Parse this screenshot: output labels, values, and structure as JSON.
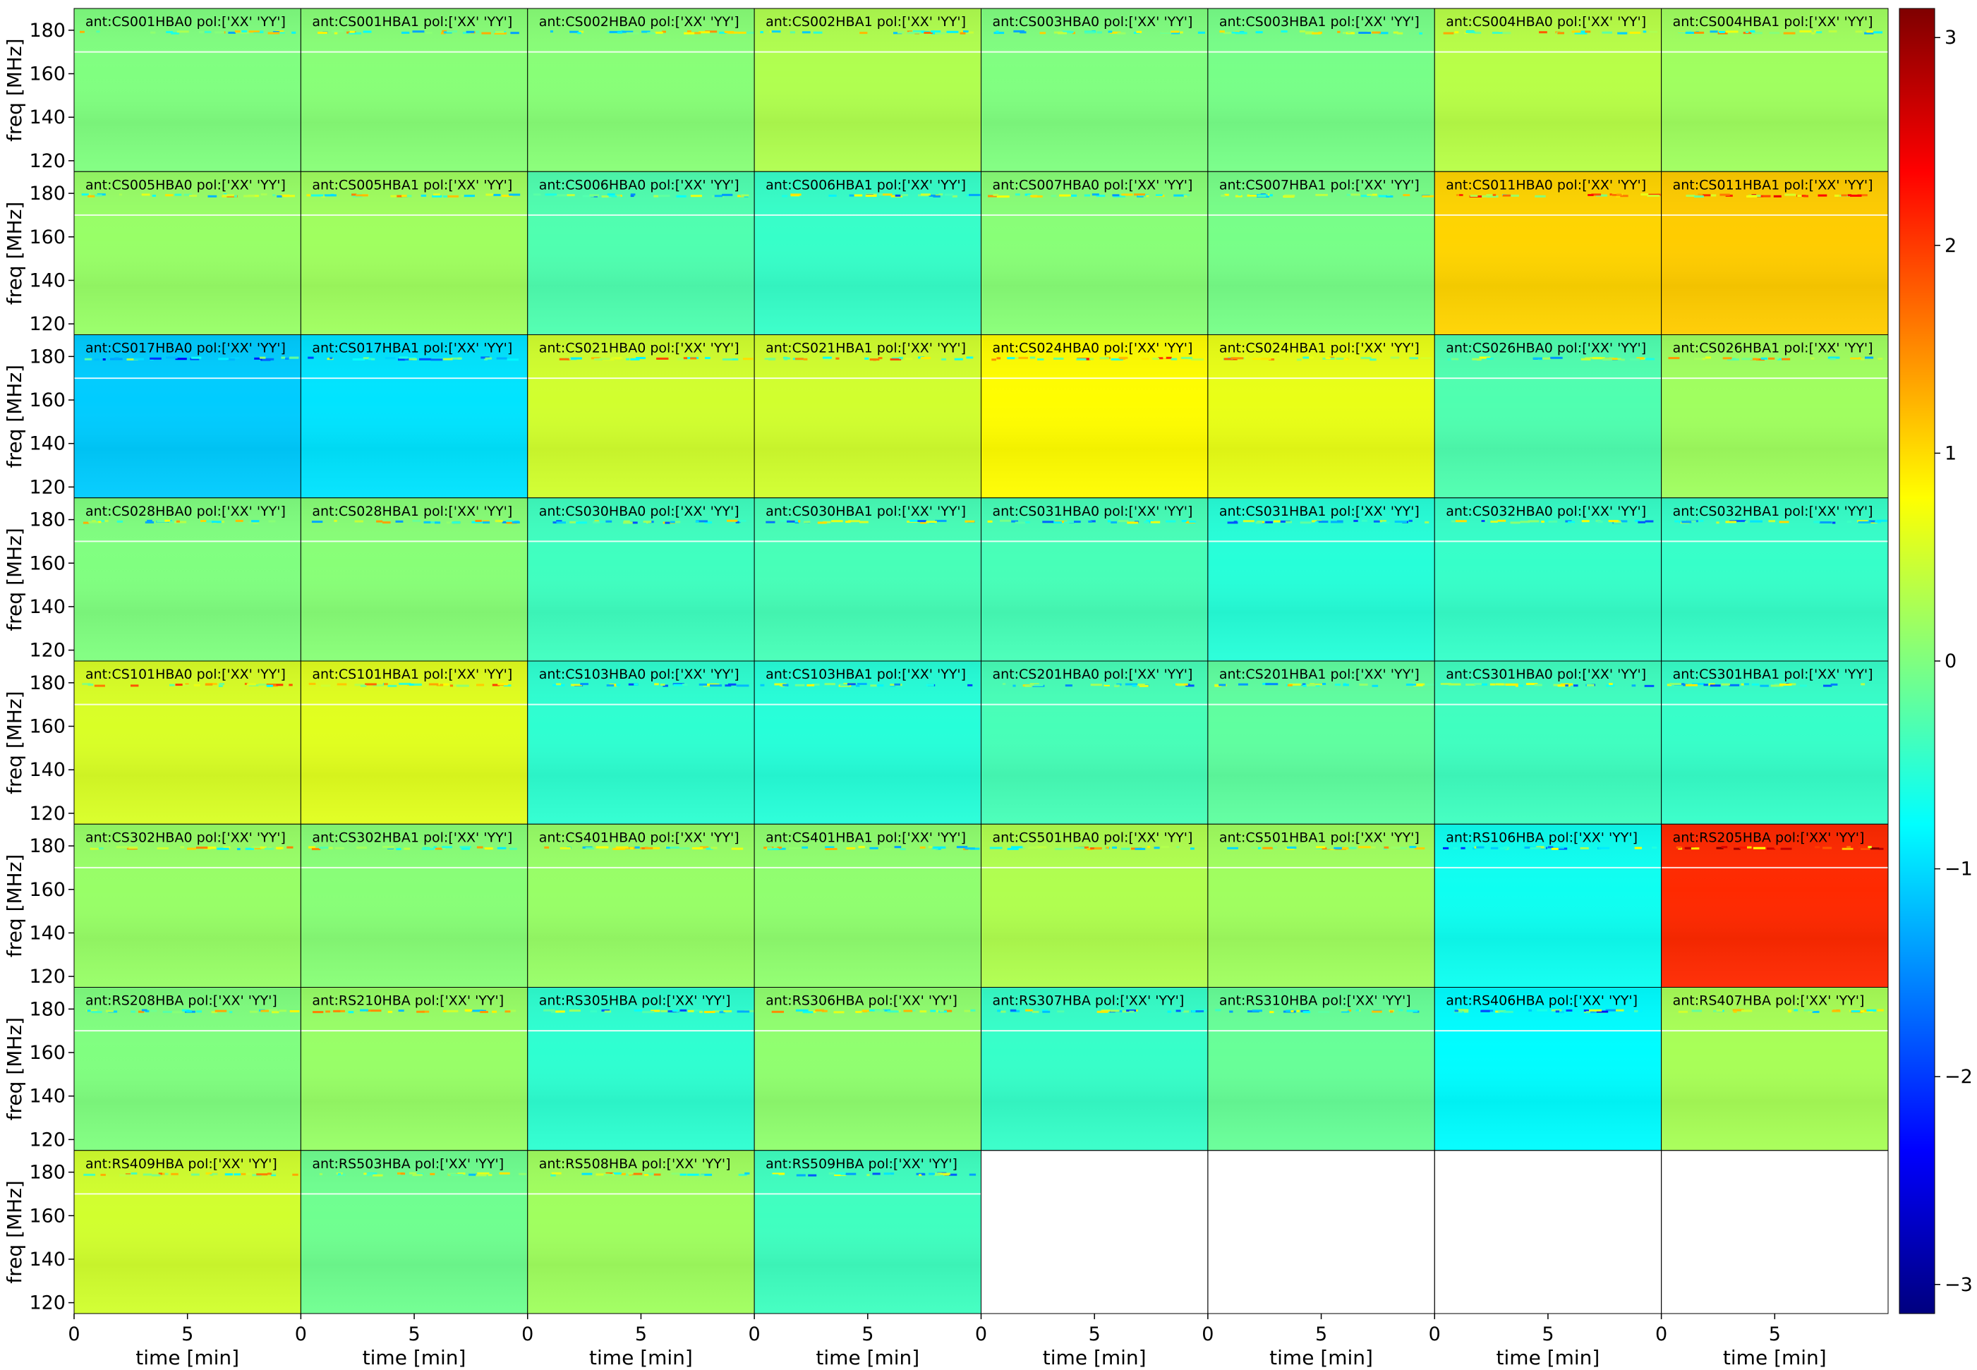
{
  "chart_data": {
    "type": "heatmap",
    "grid": {
      "rows": 8,
      "cols": 8
    },
    "xlabel": "time [min]",
    "ylabel": "freq [MHz]",
    "x_ticks": [
      0,
      5
    ],
    "y_ticks": [
      120,
      140,
      160,
      180
    ],
    "xlim": [
      0,
      10
    ],
    "ylim": [
      115,
      190
    ],
    "colorbar": {
      "colormap": "jet",
      "range": [
        -3.14,
        3.14
      ],
      "ticks": [
        -3,
        -2,
        -1,
        0,
        1,
        2,
        3
      ],
      "tick_labels": [
        "−3",
        "−2",
        "−1",
        "0",
        "1",
        "2",
        "3"
      ]
    },
    "panels": [
      {
        "label": "ant:CS001HBA0 pol:['XX' 'YY']",
        "mean_phase": 0.0
      },
      {
        "label": "ant:CS001HBA1 pol:['XX' 'YY']",
        "mean_phase": 0.05
      },
      {
        "label": "ant:CS002HBA0 pol:['XX' 'YY']",
        "mean_phase": 0.05
      },
      {
        "label": "ant:CS002HBA1 pol:['XX' 'YY']",
        "mean_phase": 0.3
      },
      {
        "label": "ant:CS003HBA0 pol:['XX' 'YY']",
        "mean_phase": 0.0
      },
      {
        "label": "ant:CS003HBA1 pol:['XX' 'YY']",
        "mean_phase": -0.05
      },
      {
        "label": "ant:CS004HBA0 pol:['XX' 'YY']",
        "mean_phase": 0.35
      },
      {
        "label": "ant:CS004HBA1 pol:['XX' 'YY']",
        "mean_phase": 0.2
      },
      {
        "label": "ant:CS005HBA0 pol:['XX' 'YY']",
        "mean_phase": 0.15
      },
      {
        "label": "ant:CS005HBA1 pol:['XX' 'YY']",
        "mean_phase": 0.2
      },
      {
        "label": "ant:CS006HBA0 pol:['XX' 'YY']",
        "mean_phase": -0.3
      },
      {
        "label": "ant:CS006HBA1 pol:['XX' 'YY']",
        "mean_phase": -0.45
      },
      {
        "label": "ant:CS007HBA0 pol:['XX' 'YY']",
        "mean_phase": 0.05
      },
      {
        "label": "ant:CS007HBA1 pol:['XX' 'YY']",
        "mean_phase": -0.05
      },
      {
        "label": "ant:CS011HBA0 pol:['XX' 'YY']",
        "mean_phase": 1.05
      },
      {
        "label": "ant:CS011HBA1 pol:['XX' 'YY']",
        "mean_phase": 1.1
      },
      {
        "label": "ant:CS017HBA0 pol:['XX' 'YY']",
        "mean_phase": -1.1
      },
      {
        "label": "ant:CS017HBA1 pol:['XX' 'YY']",
        "mean_phase": -0.95
      },
      {
        "label": "ant:CS021HBA0 pol:['XX' 'YY']",
        "mean_phase": 0.5
      },
      {
        "label": "ant:CS021HBA1 pol:['XX' 'YY']",
        "mean_phase": 0.5
      },
      {
        "label": "ant:CS024HBA0 pol:['XX' 'YY']",
        "mean_phase": 0.8
      },
      {
        "label": "ant:CS024HBA1 pol:['XX' 'YY']",
        "mean_phase": 0.65
      },
      {
        "label": "ant:CS026HBA0 pol:['XX' 'YY']",
        "mean_phase": -0.3
      },
      {
        "label": "ant:CS026HBA1 pol:['XX' 'YY']",
        "mean_phase": 0.2
      },
      {
        "label": "ant:CS028HBA0 pol:['XX' 'YY']",
        "mean_phase": 0.0
      },
      {
        "label": "ant:CS028HBA1 pol:['XX' 'YY']",
        "mean_phase": 0.05
      },
      {
        "label": "ant:CS030HBA0 pol:['XX' 'YY']",
        "mean_phase": -0.4
      },
      {
        "label": "ant:CS030HBA1 pol:['XX' 'YY']",
        "mean_phase": -0.35
      },
      {
        "label": "ant:CS031HBA0 pol:['XX' 'YY']",
        "mean_phase": -0.35
      },
      {
        "label": "ant:CS031HBA1 pol:['XX' 'YY']",
        "mean_phase": -0.55
      },
      {
        "label": "ant:CS032HBA0 pol:['XX' 'YY']",
        "mean_phase": -0.45
      },
      {
        "label": "ant:CS032HBA1 pol:['XX' 'YY']",
        "mean_phase": -0.45
      },
      {
        "label": "ant:CS101HBA0 pol:['XX' 'YY']",
        "mean_phase": 0.55
      },
      {
        "label": "ant:CS101HBA1 pol:['XX' 'YY']",
        "mean_phase": 0.6
      },
      {
        "label": "ant:CS103HBA0 pol:['XX' 'YY']",
        "mean_phase": -0.5
      },
      {
        "label": "ant:CS103HBA1 pol:['XX' 'YY']",
        "mean_phase": -0.55
      },
      {
        "label": "ant:CS201HBA0 pol:['XX' 'YY']",
        "mean_phase": -0.35
      },
      {
        "label": "ant:CS201HBA1 pol:['XX' 'YY']",
        "mean_phase": -0.2
      },
      {
        "label": "ant:CS301HBA0 pol:['XX' 'YY']",
        "mean_phase": -0.4
      },
      {
        "label": "ant:CS301HBA1 pol:['XX' 'YY']",
        "mean_phase": -0.45
      },
      {
        "label": "ant:CS302HBA0 pol:['XX' 'YY']",
        "mean_phase": 0.15
      },
      {
        "label": "ant:CS302HBA1 pol:['XX' 'YY']",
        "mean_phase": 0.05
      },
      {
        "label": "ant:CS401HBA0 pol:['XX' 'YY']",
        "mean_phase": 0.15
      },
      {
        "label": "ant:CS401HBA1 pol:['XX' 'YY']",
        "mean_phase": 0.1
      },
      {
        "label": "ant:CS501HBA0 pol:['XX' 'YY']",
        "mean_phase": 0.3
      },
      {
        "label": "ant:CS501HBA1 pol:['XX' 'YY']",
        "mean_phase": 0.2
      },
      {
        "label": "ant:RS106HBA pol:['XX' 'YY']",
        "mean_phase": -0.7
      },
      {
        "label": "ant:RS205HBA pol:['XX' 'YY']",
        "mean_phase": 2.1
      },
      {
        "label": "ant:RS208HBA pol:['XX' 'YY']",
        "mean_phase": 0.0
      },
      {
        "label": "ant:RS210HBA pol:['XX' 'YY']",
        "mean_phase": 0.15
      },
      {
        "label": "ant:RS305HBA pol:['XX' 'YY']",
        "mean_phase": -0.5
      },
      {
        "label": "ant:RS306HBA pol:['XX' 'YY']",
        "mean_phase": 0.1
      },
      {
        "label": "ant:RS307HBA pol:['XX' 'YY']",
        "mean_phase": -0.45
      },
      {
        "label": "ant:RS310HBA pol:['XX' 'YY']",
        "mean_phase": -0.15
      },
      {
        "label": "ant:RS406HBA pol:['XX' 'YY']",
        "mean_phase": -0.8
      },
      {
        "label": "ant:RS407HBA pol:['XX' 'YY']",
        "mean_phase": 0.25
      },
      {
        "label": "ant:RS409HBA pol:['XX' 'YY']",
        "mean_phase": 0.5
      },
      {
        "label": "ant:RS503HBA pol:['XX' 'YY']",
        "mean_phase": -0.1
      },
      {
        "label": "ant:RS508HBA pol:['XX' 'YY']",
        "mean_phase": 0.2
      },
      {
        "label": "ant:RS509HBA pol:['XX' 'YY']",
        "mean_phase": -0.4
      },
      {
        "label": "",
        "mean_phase": null
      },
      {
        "label": "",
        "mean_phase": null
      },
      {
        "label": "",
        "mean_phase": null
      },
      {
        "label": "",
        "mean_phase": null
      }
    ]
  }
}
